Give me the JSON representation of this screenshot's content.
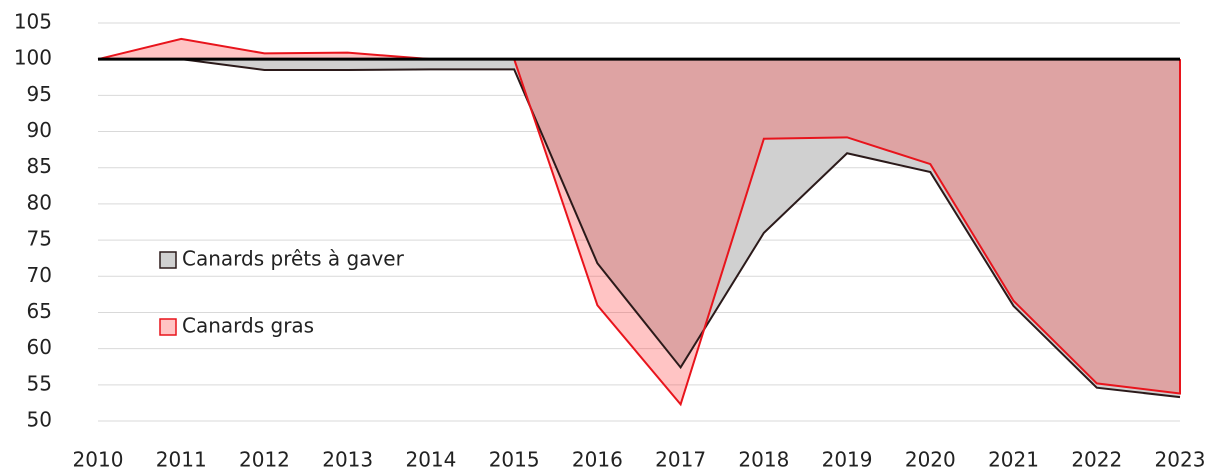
{
  "chart_data": {
    "type": "area",
    "x": [
      2010,
      2011,
      2012,
      2013,
      2014,
      2015,
      2016,
      2017,
      2018,
      2019,
      2020,
      2021,
      2022,
      2023
    ],
    "xlim": [
      2010,
      2023
    ],
    "ylim": [
      50,
      105
    ],
    "yticks": [
      50,
      55,
      60,
      65,
      70,
      75,
      80,
      85,
      90,
      95,
      100,
      105
    ],
    "grid": true,
    "legend": "left",
    "series": [
      {
        "name": "Canards prêts à gaver",
        "color": "#d0d0d0",
        "line_color": "#2b1a1a",
        "values": [
          100,
          100,
          98.5,
          98.5,
          98.6,
          98.6,
          71.8,
          57.4,
          76,
          87,
          84.4,
          65.9,
          54.6,
          53.3
        ]
      },
      {
        "name": "Canards gras",
        "color": "rgba(255,60,60,0.3)",
        "line_color": "#e8141c",
        "values": [
          100,
          102.8,
          100.8,
          100.9,
          100,
          100,
          66,
          52.3,
          89,
          89.2,
          85.5,
          66.6,
          55.2,
          53.8
        ]
      }
    ]
  }
}
